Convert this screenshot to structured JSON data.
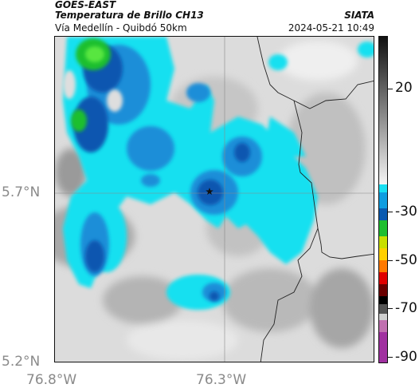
{
  "header": {
    "satellite": "GOES-EAST",
    "product": "Temperatura de Brillo CH13",
    "route": "Vía Medellín - Quibdó 50km",
    "org": "SIATA",
    "timestamp": "2024-05-21 10:49"
  },
  "axes": {
    "lat_labels": [
      "5.7°N",
      "5.2°N"
    ],
    "lon_labels": [
      "76.8°W",
      "76.3°W"
    ]
  },
  "colorbar": {
    "tick_labels": [
      "20",
      "-30",
      "-50",
      "-70",
      "-90"
    ]
  },
  "map": {
    "marker": "star-icon"
  },
  "colors": {
    "cloud_cyan": "#14e0f0",
    "cloud_blue": "#1a8ed8",
    "cloud_deep": "#0a57b0",
    "cloud_green": "#1fbf2f",
    "clear_grey": "#d8d8d8"
  }
}
